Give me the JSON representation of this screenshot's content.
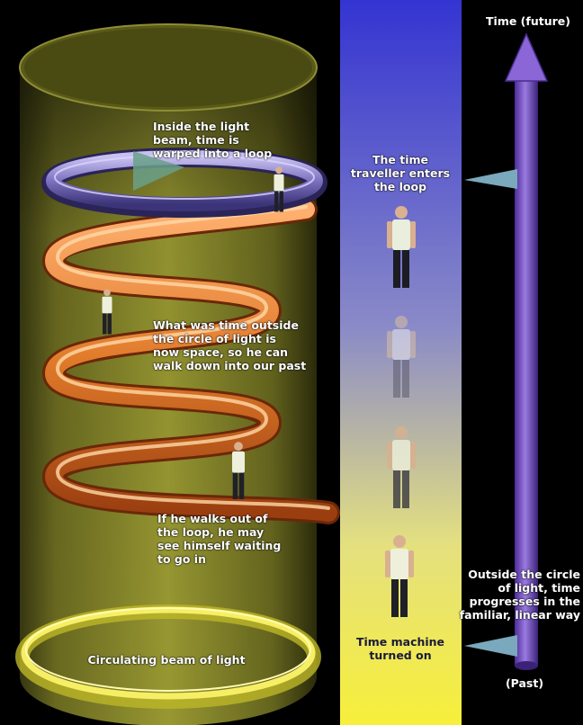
{
  "labels": {
    "time_future": "Time (future)",
    "past": "(Past)",
    "inside_beam": "Inside the light\nbeam, time is\nwarped into a loop",
    "traveller_enters": "The time\ntraveller enters\nthe loop",
    "outside_circle": "What was time outside\nthe circle of light is\nnow space, so he can\nwalk down into our past",
    "walks_out": "If he walks out of\nthe loop, he may\nsee himself waiting\nto go in",
    "outside_linear": "Outside the circle\nof light, time\nprogresses in the\nfamiliar, linear way",
    "time_machine_on": "Time machine\nturned on",
    "circulating_beam": "Circulating beam of light"
  },
  "colors": {
    "background": "#000000",
    "cylinder": "#8a8a2a",
    "helix": "#e07a2a",
    "time_strip_top": "#3a3ad0",
    "time_strip_bottom": "#f4ec50",
    "time_arrow": "#7a55c8",
    "ring_light": "#e6e04a",
    "loop_ring": "#8a80c8"
  }
}
